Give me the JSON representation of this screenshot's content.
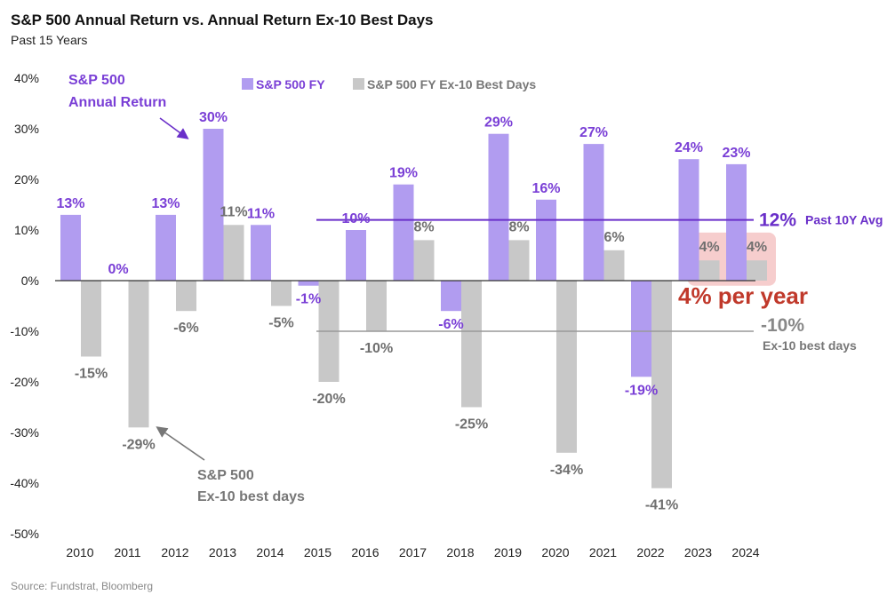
{
  "chart_data": {
    "type": "bar",
    "title": "S&P 500 Annual Return vs. Annual Return Ex-10 Best Days",
    "subtitle": "Past 15 Years",
    "source": "Source: Fundstrat, Bloomberg",
    "categories": [
      "2010",
      "2011",
      "2012",
      "2013",
      "2014",
      "2015",
      "2016",
      "2017",
      "2018",
      "2019",
      "2020",
      "2021",
      "2022",
      "2023",
      "2024"
    ],
    "series": [
      {
        "name": "S&P 500 FY",
        "color": "#b19cf0",
        "label_color": "#7a3fd6",
        "values": [
          13,
          0,
          13,
          30,
          11,
          -1,
          10,
          19,
          -6,
          29,
          16,
          27,
          -19,
          24,
          23
        ],
        "labels": [
          "13%",
          "0%",
          "13%",
          "30%",
          "11%",
          "-1%",
          "10%",
          "19%",
          "-6%",
          "29%",
          "16%",
          "27%",
          "-19%",
          "24%",
          "23%"
        ]
      },
      {
        "name": "S&P 500 FY Ex-10 Best Days",
        "color": "#c8c8c8",
        "label_color": "#6f6f6f",
        "values": [
          -15,
          -29,
          -6,
          11,
          -5,
          -20,
          -10,
          8,
          -25,
          8,
          -34,
          6,
          -41,
          4,
          4
        ],
        "labels": [
          "-15%",
          "-29%",
          "-6%",
          "11%",
          "-5%",
          "-20%",
          "-10%",
          "8%",
          "-25%",
          "8%",
          "-34%",
          "6%",
          "-41%",
          "4%",
          "4%"
        ]
      }
    ],
    "ylim": [
      -50,
      40
    ],
    "yticks": [
      "40%",
      "30%",
      "20%",
      "10%",
      "0%",
      "-10%",
      "-20%",
      "-30%",
      "-40%",
      "-50%"
    ],
    "legend_position": "top",
    "grid": false,
    "reference_lines": [
      {
        "value": 12,
        "label": "12%",
        "sublabel": "Past 10Y Avg",
        "color": "#6a2fc9"
      },
      {
        "value": -10,
        "label": "-10%",
        "sublabel": "Ex-10 best days",
        "color": "#999999"
      }
    ],
    "annotations": {
      "fy_label_line1": "S&P 500",
      "fy_label_line2": "Annual Return",
      "ex_label_line1": "S&P 500",
      "ex_label_line2": "Ex-10 best days",
      "highlight_text": "4% per year",
      "highlight_color": "#c0392b"
    }
  }
}
